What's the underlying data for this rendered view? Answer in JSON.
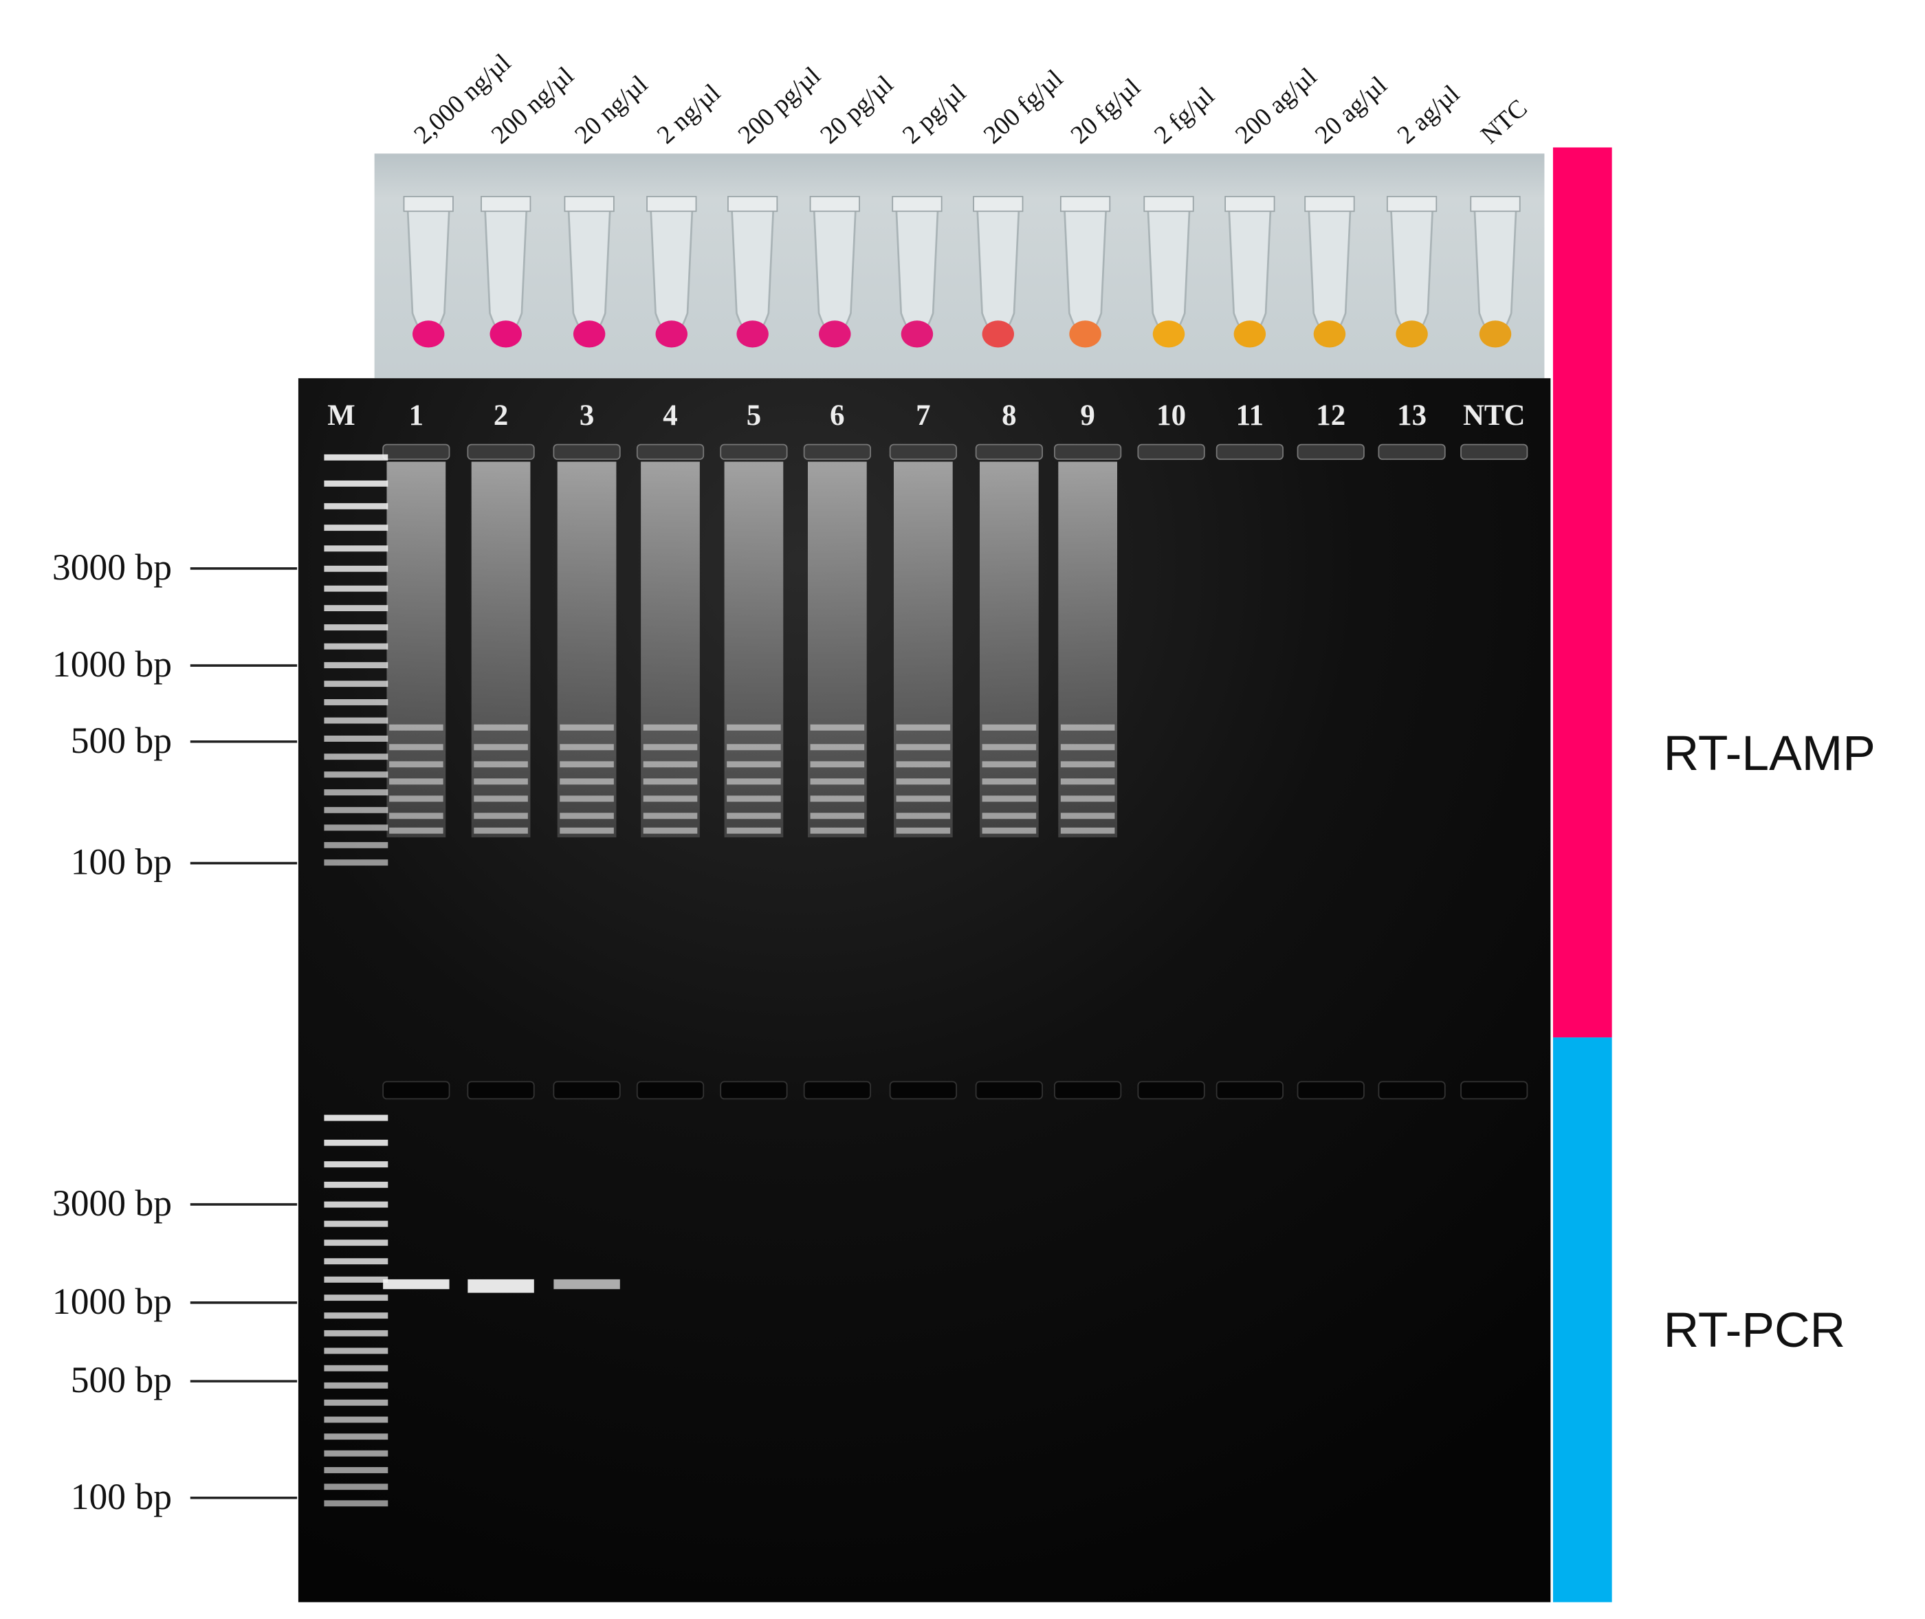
{
  "tubes": {
    "labels": [
      "2,000 ng/µl",
      "200 ng/µl",
      "20 ng/µl",
      "2 ng/µl",
      "200 pg/µl",
      "20 pg/µl",
      "2 pg/µl",
      "200 fg/µl",
      "20 fg/µl",
      "2 fg/µl",
      "200 ag/µl",
      "20 ag/µl",
      "2 ag/µl",
      "NTC"
    ]
  },
  "gel": {
    "lanes": [
      "M",
      "1",
      "2",
      "3",
      "4",
      "5",
      "6",
      "7",
      "8",
      "9",
      "10",
      "11",
      "12",
      "13",
      "NTC"
    ],
    "lamp_markers": [
      "3000 bp",
      "1000 bp",
      "500 bp",
      "100 bp"
    ],
    "pcr_markers": [
      "3000 bp",
      "1000 bp",
      "500 bp",
      "100 bp"
    ]
  },
  "sidebar": {
    "top": "RT-LAMP",
    "bottom": "RT-PCR"
  }
}
